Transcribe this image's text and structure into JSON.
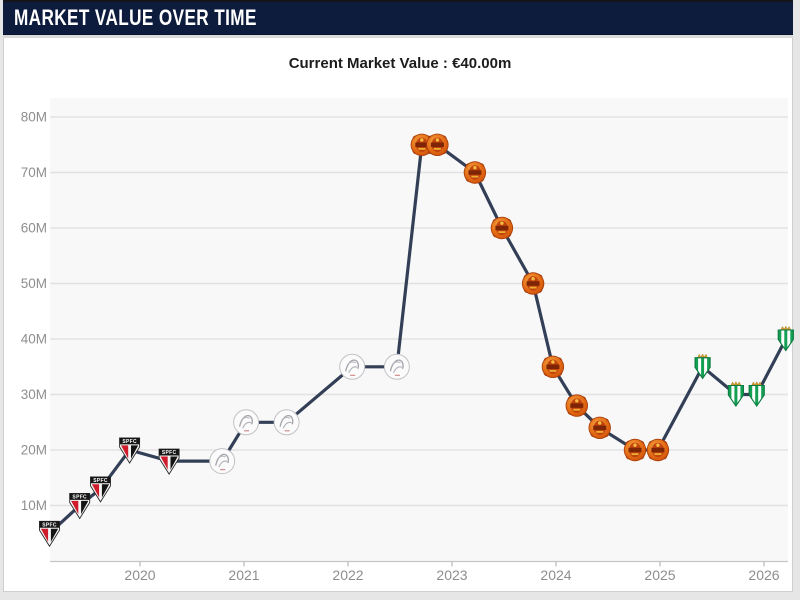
{
  "header": {
    "title": "MARKET VALUE OVER TIME"
  },
  "subtitle": "Current Market Value : €40.00m",
  "colors": {
    "header_bg": "#0d1c3c",
    "line": "#333f56",
    "grid": "#e2e2e2",
    "plot_bg": "#f8f8f8",
    "axis_line": "#c6c6c6",
    "axis_label": "#8e8e8e"
  },
  "chart_data": {
    "type": "line",
    "title": "MARKET VALUE OVER TIME",
    "subtitle": "Current Market Value : €40.00m",
    "unit": "€m (M = million euro)",
    "grid": true,
    "legend_position": "none",
    "ylim": [
      0,
      83
    ],
    "xlim": [
      2019.05,
      2026.35
    ],
    "yticks": [
      {
        "value": 10,
        "label": "10M"
      },
      {
        "value": 20,
        "label": "20M"
      },
      {
        "value": 30,
        "label": "30M"
      },
      {
        "value": 40,
        "label": "40M"
      },
      {
        "value": 50,
        "label": "50M"
      },
      {
        "value": 60,
        "label": "60M"
      },
      {
        "value": 70,
        "label": "70M"
      },
      {
        "value": 80,
        "label": "80M"
      }
    ],
    "xticks": [
      {
        "value": 2020,
        "label": "2020"
      },
      {
        "value": 2021,
        "label": "2021"
      },
      {
        "value": 2022,
        "label": "2022"
      },
      {
        "value": 2023,
        "label": "2023"
      },
      {
        "value": 2024,
        "label": "2024"
      },
      {
        "value": 2025,
        "label": "2025"
      },
      {
        "value": 2026,
        "label": "2026"
      }
    ],
    "points": [
      {
        "x": 2019.13,
        "value": 5,
        "club": "sao-paulo"
      },
      {
        "x": 2019.42,
        "value": 10,
        "club": "sao-paulo"
      },
      {
        "x": 2019.62,
        "value": 13,
        "club": "sao-paulo"
      },
      {
        "x": 2019.9,
        "value": 20,
        "club": "sao-paulo"
      },
      {
        "x": 2020.28,
        "value": 18,
        "club": "sao-paulo"
      },
      {
        "x": 2020.79,
        "value": 18,
        "club": "ajax"
      },
      {
        "x": 2021.02,
        "value": 25,
        "club": "ajax"
      },
      {
        "x": 2021.41,
        "value": 25,
        "club": "ajax"
      },
      {
        "x": 2022.04,
        "value": 35,
        "club": "ajax"
      },
      {
        "x": 2022.47,
        "value": 35,
        "club": "ajax"
      },
      {
        "x": 2022.71,
        "value": 75,
        "club": "man-united"
      },
      {
        "x": 2022.86,
        "value": 75,
        "club": "man-united"
      },
      {
        "x": 2023.22,
        "value": 70,
        "club": "man-united"
      },
      {
        "x": 2023.48,
        "value": 60,
        "club": "man-united"
      },
      {
        "x": 2023.78,
        "value": 50,
        "club": "man-united"
      },
      {
        "x": 2023.97,
        "value": 35,
        "club": "man-united"
      },
      {
        "x": 2024.2,
        "value": 28,
        "club": "man-united"
      },
      {
        "x": 2024.42,
        "value": 24,
        "club": "man-united"
      },
      {
        "x": 2024.76,
        "value": 20,
        "club": "man-united"
      },
      {
        "x": 2024.98,
        "value": 20,
        "club": "man-united"
      },
      {
        "x": 2025.41,
        "value": 35,
        "club": "betis"
      },
      {
        "x": 2025.73,
        "value": 30,
        "club": "betis"
      },
      {
        "x": 2025.93,
        "value": 30,
        "club": "betis"
      },
      {
        "x": 2026.21,
        "value": 40,
        "club": "betis"
      }
    ],
    "clubs": {
      "sao-paulo": {
        "name": "São Paulo FC",
        "crest_label": "SPFC",
        "primary": "#cf1b2b",
        "secondary": "#161616"
      },
      "ajax": {
        "name": "Ajax",
        "crest_label": "",
        "primary": "#fbfbfb",
        "secondary": "#a3a3ab"
      },
      "man-united": {
        "name": "Manchester United",
        "crest_label": "",
        "primary": "#e06612",
        "secondary": "#7e2407"
      },
      "betis": {
        "name": "Real Betis",
        "crest_label": "",
        "primary": "#14a053",
        "secondary": "#dba231"
      }
    }
  }
}
